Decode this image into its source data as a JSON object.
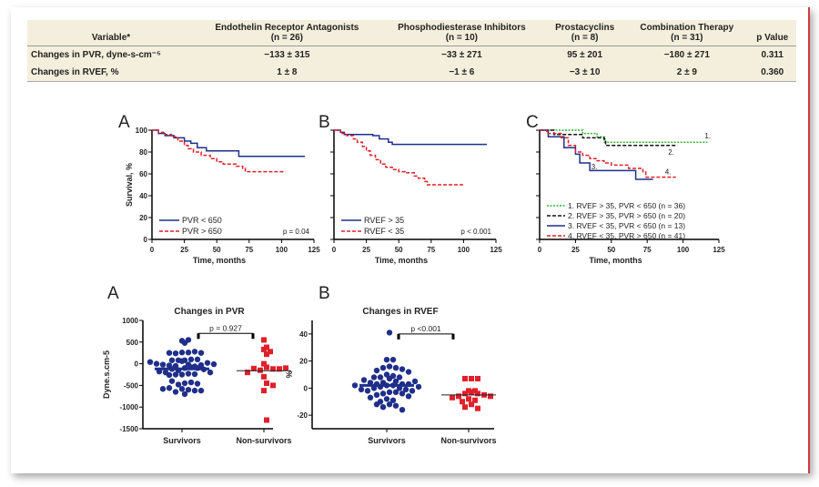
{
  "table": {
    "headers": [
      {
        "name": "Variable*",
        "n": ""
      },
      {
        "name": "Endothelin Receptor Antagonists",
        "n": "(n = 26)"
      },
      {
        "name": "Phosphodiesterase Inhibitors",
        "n": "(n = 10)"
      },
      {
        "name": "Prostacyclins",
        "n": "(n = 8)"
      },
      {
        "name": "Combination Therapy",
        "n": "(n = 31)"
      },
      {
        "name": "p Value",
        "n": ""
      }
    ],
    "rows": [
      [
        "Changes in PVR, dyne-s-cm⁻⁵",
        "−133 ± 315",
        "−33 ± 271",
        "95 ± 201",
        "−180 ± 271",
        "0.311"
      ],
      [
        "Changes in RVEF, %",
        "1 ± 8",
        "−1 ± 6",
        "−3 ± 10",
        "2 ± 9",
        "0.360"
      ]
    ]
  },
  "chart_data": [
    {
      "type": "line",
      "panel": "A",
      "xlabel": "Time, months",
      "ylabel": "Survival, %",
      "xlim": [
        0,
        125
      ],
      "ylim": [
        0,
        100
      ],
      "xticks": [
        0,
        25,
        50,
        75,
        100,
        125
      ],
      "yticks": [
        0,
        20,
        40,
        60,
        80,
        100
      ],
      "annotation": "p = 0.04",
      "legend": "bottom-left",
      "series": [
        {
          "name": "PVR < 650",
          "color": "#1f2f8a",
          "dash": "",
          "points": [
            [
              0,
              100
            ],
            [
              5,
              97
            ],
            [
              10,
              95
            ],
            [
              17,
              93
            ],
            [
              25,
              90
            ],
            [
              30,
              88
            ],
            [
              35,
              84
            ],
            [
              42,
              81
            ],
            [
              67,
              81
            ],
            [
              67,
              76
            ],
            [
              118,
              76
            ]
          ]
        },
        {
          "name": "PVR > 650",
          "color": "#e0202a",
          "dash": "4,2",
          "points": [
            [
              0,
              100
            ],
            [
              5,
              98
            ],
            [
              10,
              96
            ],
            [
              15,
              94
            ],
            [
              20,
              90
            ],
            [
              25,
              86
            ],
            [
              28,
              83
            ],
            [
              32,
              80
            ],
            [
              38,
              77
            ],
            [
              45,
              74
            ],
            [
              50,
              71
            ],
            [
              55,
              69
            ],
            [
              65,
              67
            ],
            [
              70,
              65
            ],
            [
              72,
              62
            ],
            [
              103,
              62
            ]
          ]
        }
      ]
    },
    {
      "type": "line",
      "panel": "B",
      "xlabel": "Time, months",
      "ylabel": "",
      "xlim": [
        0,
        125
      ],
      "ylim": [
        0,
        100
      ],
      "xticks": [
        0,
        25,
        50,
        75,
        100,
        125
      ],
      "yticks": [
        0,
        20,
        40,
        60,
        80,
        100
      ],
      "annotation": "p < 0.001",
      "legend": "bottom-left",
      "series": [
        {
          "name": "RVEF > 35",
          "color": "#1f2f8a",
          "dash": "",
          "points": [
            [
              0,
              100
            ],
            [
              5,
              98
            ],
            [
              8,
              96
            ],
            [
              30,
              95
            ],
            [
              35,
              92
            ],
            [
              42,
              89
            ],
            [
              45,
              87
            ],
            [
              118,
              87
            ]
          ]
        },
        {
          "name": "RVEF < 35",
          "color": "#e0202a",
          "dash": "4,2",
          "points": [
            [
              0,
              100
            ],
            [
              5,
              97
            ],
            [
              10,
              95
            ],
            [
              15,
              92
            ],
            [
              18,
              89
            ],
            [
              22,
              85
            ],
            [
              25,
              81
            ],
            [
              28,
              77
            ],
            [
              32,
              73
            ],
            [
              36,
              69
            ],
            [
              40,
              66
            ],
            [
              45,
              64
            ],
            [
              50,
              62
            ],
            [
              55,
              61
            ],
            [
              62,
              58
            ],
            [
              65,
              56
            ],
            [
              70,
              53
            ],
            [
              72,
              50
            ],
            [
              100,
              50
            ]
          ]
        }
      ]
    },
    {
      "type": "line",
      "panel": "C",
      "xlabel": "Time, months",
      "ylabel": "",
      "xlim": [
        0,
        125
      ],
      "ylim": [
        0,
        100
      ],
      "xticks": [
        0,
        25,
        50,
        75,
        100,
        125
      ],
      "yticks": [
        0,
        20,
        40,
        60,
        80,
        100
      ],
      "annotation": "",
      "legend": "bottom-left",
      "series": [
        {
          "name": "1. RVEF > 35, PVR < 650 (n = 36)",
          "tag": "1.",
          "color": "#33b033",
          "dash": "2,1.5",
          "points": [
            [
              0,
              100
            ],
            [
              30,
              97
            ],
            [
              40,
              94
            ],
            [
              45,
              89
            ],
            [
              117,
              89
            ]
          ]
        },
        {
          "name": "2. RVEF > 35, PVR > 650 (n = 20)",
          "tag": "2.",
          "color": "#111111",
          "dash": "4,2",
          "points": [
            [
              0,
              100
            ],
            [
              10,
              96
            ],
            [
              27,
              96
            ],
            [
              30,
              93
            ],
            [
              45,
              92
            ],
            [
              46,
              86
            ],
            [
              96,
              86
            ]
          ]
        },
        {
          "name": "3. RVEF < 35, PVR < 650 (n = 13)",
          "tag": "3.",
          "color": "#1f2f8a",
          "dash": "",
          "points": [
            [
              0,
              100
            ],
            [
              6,
              94
            ],
            [
              17,
              84
            ],
            [
              25,
              78
            ],
            [
              28,
              70
            ],
            [
              35,
              63
            ],
            [
              67,
              63
            ],
            [
              67,
              55
            ],
            [
              79,
              55
            ]
          ]
        },
        {
          "name": "4. RVEF < 35, PVR > 650 (n = 41)",
          "tag": "4.",
          "color": "#e0202a",
          "dash": "4,2",
          "points": [
            [
              0,
              100
            ],
            [
              5,
              97
            ],
            [
              15,
              93
            ],
            [
              20,
              86
            ],
            [
              25,
              80
            ],
            [
              30,
              77
            ],
            [
              35,
              74
            ],
            [
              40,
              72
            ],
            [
              45,
              70
            ],
            [
              50,
              68
            ],
            [
              62,
              65
            ],
            [
              72,
              62
            ],
            [
              74,
              57
            ],
            [
              95,
              57
            ]
          ]
        }
      ]
    },
    {
      "type": "scatter",
      "panel": "A",
      "title": "Changes in PVR",
      "ylabel": "Dyne.s.cm-5",
      "ylim": [
        -1500,
        1000
      ],
      "yticks": [
        1000,
        500,
        0,
        -500,
        -1000,
        -1500
      ],
      "categories": [
        "Survivors",
        "Non-survivors"
      ],
      "annotation": "p = 0.927",
      "series": [
        {
          "name": "Survivors",
          "color": "#1f2f8a",
          "marker": "circle",
          "line": -120,
          "values": [
            530,
            480,
            550,
            260,
            260,
            240,
            280,
            250,
            250,
            80,
            100,
            60,
            80,
            100,
            80,
            -20,
            -50,
            -100,
            -80,
            -150,
            -100,
            -120,
            -130,
            -60,
            -40,
            -30,
            -20,
            -200,
            -250,
            -230,
            -250,
            -240,
            -260,
            -450,
            -430,
            -480,
            -460,
            -400,
            -580,
            -600,
            -650,
            -700,
            -620,
            -560,
            -620,
            -580,
            -200,
            -180,
            20,
            0,
            -10,
            40
          ]
        },
        {
          "name": "Non-survivors",
          "color": "#e0202a",
          "marker": "square",
          "line": -160,
          "values": [
            550,
            380,
            330,
            220,
            280,
            -80,
            -120,
            -150,
            -120,
            -110,
            0,
            -100,
            -200,
            -300,
            -450,
            -500,
            -620,
            -1300
          ]
        }
      ]
    },
    {
      "type": "scatter",
      "panel": "B",
      "title": "Changes in RVEF",
      "ylabel": "%",
      "ylim": [
        -30,
        50
      ],
      "yticks": [
        40,
        20,
        0,
        -20
      ],
      "categories": [
        "Survivors",
        "Non-survivors"
      ],
      "annotation": "p <0.001",
      "series": [
        {
          "name": "Survivors",
          "color": "#1f2f8a",
          "marker": "circle",
          "line": 2,
          "values": [
            41,
            21,
            21,
            16,
            15,
            15,
            14,
            13,
            12,
            10,
            9,
            8,
            8,
            7,
            8,
            5,
            4,
            3,
            3,
            2,
            2,
            1,
            0,
            0,
            -1,
            -2,
            -2,
            -3,
            -3,
            -4,
            -4,
            -5,
            -6,
            -7,
            -8,
            -9,
            -10,
            -12,
            -13,
            -14,
            -16,
            -12,
            -1,
            1,
            2,
            3,
            4,
            5,
            6
          ]
        },
        {
          "name": "Non-survivors",
          "color": "#e0202a",
          "marker": "square",
          "line": -5,
          "values": [
            7,
            7,
            7,
            -2,
            -2,
            -3,
            -4,
            -4,
            -5,
            -6,
            -6,
            -7,
            -8,
            -9,
            -10,
            -12,
            -15,
            -14
          ]
        }
      ]
    }
  ]
}
